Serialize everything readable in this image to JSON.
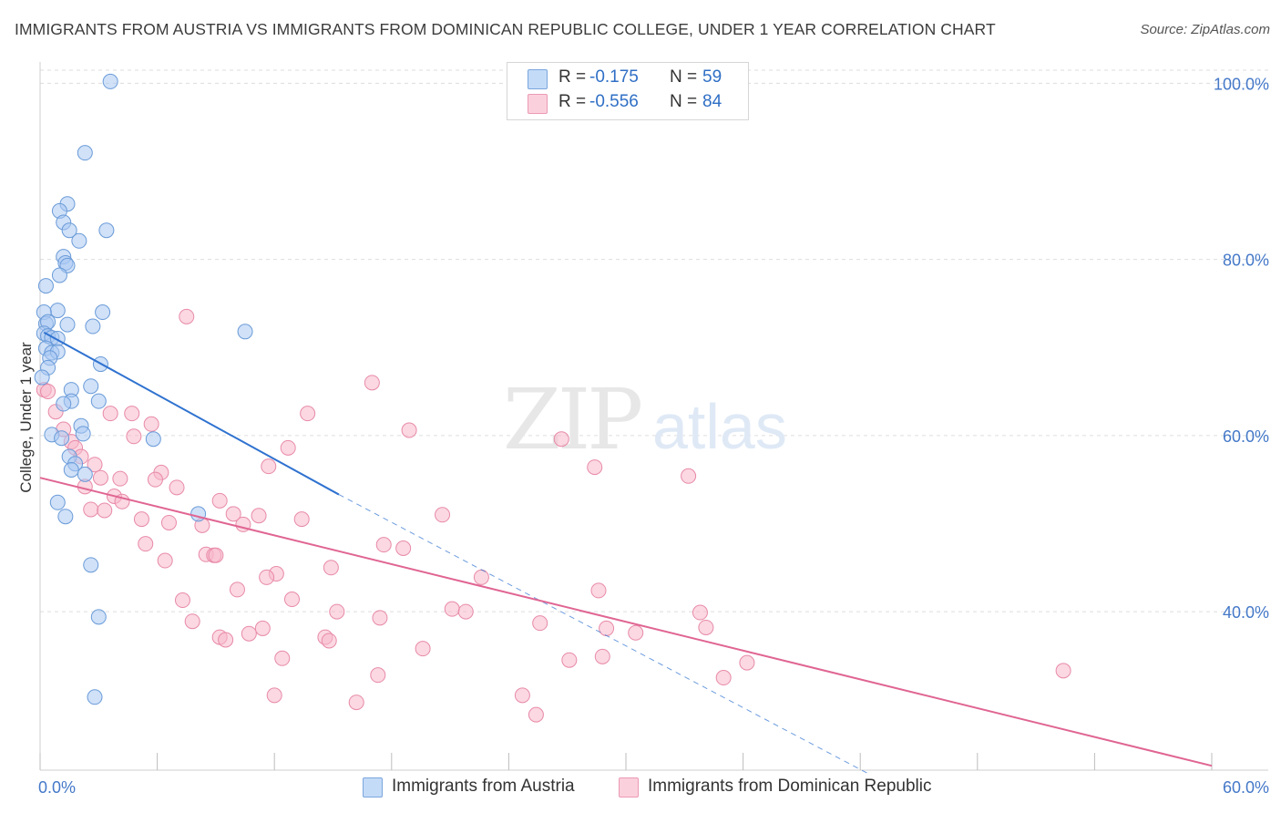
{
  "title": "IMMIGRANTS FROM AUSTRIA VS IMMIGRANTS FROM DOMINICAN REPUBLIC COLLEGE, UNDER 1 YEAR CORRELATION CHART",
  "source": "Source: ZipAtlas.com",
  "watermark": {
    "zip": "ZIP",
    "atlas": "atlas"
  },
  "legend": {
    "austria": {
      "r_label": "R =",
      "r_value": "-0.175",
      "n_label": "N =",
      "n_value": "59",
      "color": "#a9c8f2"
    },
    "dominican": {
      "r_label": "R =",
      "r_value": "-0.556",
      "n_label": "N =",
      "n_value": "84",
      "color": "#f7b8cb"
    }
  },
  "bottom_legend": {
    "austria_label": "Immigrants from Austria",
    "dominican_label": "Immigrants from Dominican Republic"
  },
  "colors": {
    "austria_fill": "#a9c8f2",
    "austria_stroke": "#6a9bd8",
    "austria_line": "#2f72d0",
    "dominican_fill": "#f7b8cb",
    "dominican_stroke": "#e88aa8",
    "dominican_line": "#e06592",
    "tick_label": "#4478c8",
    "grid": "#dddddd"
  },
  "chart_data": {
    "type": "scatter",
    "title": "IMMIGRANTS FROM AUSTRIA VS IMMIGRANTS FROM DOMINICAN REPUBLIC COLLEGE, UNDER 1 YEAR CORRELATION CHART",
    "xlabel": "",
    "ylabel": "College, Under 1 year",
    "xlim": [
      0,
      60
    ],
    "ylim": [
      22,
      102
    ],
    "x_tick_labels": [
      {
        "value": 0,
        "label": "0.0%"
      },
      {
        "value": 60,
        "label": "60.0%"
      }
    ],
    "y_tick_labels": [
      {
        "value": 40,
        "label": "40.0%"
      },
      {
        "value": 60,
        "label": "60.0%"
      },
      {
        "value": 80,
        "label": "80.0%"
      },
      {
        "value": 100,
        "label": "100.0%"
      }
    ],
    "series": [
      {
        "name": "Immigrants from Austria",
        "R": -0.175,
        "N": 59,
        "trend": {
          "x0": 0.2,
          "y0": 71.7,
          "x1": 15.3,
          "y1": 53.3,
          "dash_to_x": 42.5,
          "dash_to_y": 21.5
        },
        "points": [
          [
            3.6,
            100.2
          ],
          [
            2.3,
            92.1
          ],
          [
            1.4,
            86.3
          ],
          [
            1.0,
            85.5
          ],
          [
            1.2,
            84.2
          ],
          [
            1.5,
            83.3
          ],
          [
            3.4,
            83.3
          ],
          [
            2.0,
            82.1
          ],
          [
            1.2,
            80.3
          ],
          [
            1.3,
            79.6
          ],
          [
            1.4,
            79.3
          ],
          [
            1.0,
            78.2
          ],
          [
            0.3,
            77.0
          ],
          [
            3.2,
            74.0
          ],
          [
            0.9,
            74.2
          ],
          [
            0.2,
            74.0
          ],
          [
            0.3,
            72.7
          ],
          [
            0.4,
            72.9
          ],
          [
            1.4,
            72.6
          ],
          [
            2.7,
            72.4
          ],
          [
            10.5,
            71.8
          ],
          [
            0.2,
            71.6
          ],
          [
            0.4,
            71.3
          ],
          [
            0.6,
            71.1
          ],
          [
            0.9,
            71.0
          ],
          [
            0.3,
            69.9
          ],
          [
            0.6,
            69.4
          ],
          [
            0.9,
            69.5
          ],
          [
            0.5,
            68.8
          ],
          [
            3.1,
            68.1
          ],
          [
            0.4,
            67.7
          ],
          [
            0.1,
            66.6
          ],
          [
            2.6,
            65.6
          ],
          [
            1.6,
            65.2
          ],
          [
            1.6,
            63.9
          ],
          [
            1.2,
            63.6
          ],
          [
            3.0,
            63.9
          ],
          [
            2.1,
            61.1
          ],
          [
            2.2,
            60.2
          ],
          [
            0.6,
            60.1
          ],
          [
            1.1,
            59.7
          ],
          [
            5.8,
            59.6
          ],
          [
            1.5,
            57.6
          ],
          [
            1.8,
            56.8
          ],
          [
            1.6,
            56.1
          ],
          [
            2.3,
            55.6
          ],
          [
            0.9,
            52.4
          ],
          [
            8.1,
            51.1
          ],
          [
            1.3,
            50.8
          ],
          [
            2.6,
            45.3
          ],
          [
            3.0,
            39.4
          ],
          [
            2.8,
            30.3
          ]
        ]
      },
      {
        "name": "Immigrants from Dominican Republic",
        "R": -0.556,
        "N": 84,
        "trend": {
          "x0": 0.0,
          "y0": 55.2,
          "x1": 60.0,
          "y1": 22.5
        },
        "points": [
          [
            7.5,
            73.5
          ],
          [
            17.0,
            66.0
          ],
          [
            0.2,
            65.2
          ],
          [
            0.4,
            65.0
          ],
          [
            0.8,
            62.7
          ],
          [
            3.6,
            62.5
          ],
          [
            4.7,
            62.5
          ],
          [
            13.7,
            62.5
          ],
          [
            5.7,
            61.3
          ],
          [
            1.2,
            60.7
          ],
          [
            18.9,
            60.6
          ],
          [
            4.8,
            59.9
          ],
          [
            26.7,
            59.6
          ],
          [
            1.6,
            59.3
          ],
          [
            1.8,
            58.6
          ],
          [
            12.7,
            58.6
          ],
          [
            2.1,
            57.6
          ],
          [
            2.8,
            56.7
          ],
          [
            11.7,
            56.5
          ],
          [
            28.4,
            56.4
          ],
          [
            6.2,
            55.8
          ],
          [
            33.2,
            55.4
          ],
          [
            3.1,
            55.2
          ],
          [
            4.1,
            55.1
          ],
          [
            5.9,
            55.0
          ],
          [
            2.3,
            54.2
          ],
          [
            7.0,
            54.1
          ],
          [
            3.8,
            53.1
          ],
          [
            9.2,
            52.6
          ],
          [
            4.2,
            52.5
          ],
          [
            2.6,
            51.6
          ],
          [
            3.3,
            51.5
          ],
          [
            9.9,
            51.1
          ],
          [
            11.2,
            50.9
          ],
          [
            20.6,
            51.0
          ],
          [
            5.2,
            50.5
          ],
          [
            13.4,
            50.5
          ],
          [
            6.6,
            50.1
          ],
          [
            10.4,
            49.9
          ],
          [
            8.3,
            49.8
          ],
          [
            5.4,
            47.7
          ],
          [
            17.6,
            47.6
          ],
          [
            18.6,
            47.2
          ],
          [
            8.5,
            46.5
          ],
          [
            8.9,
            46.4
          ],
          [
            9.0,
            46.4
          ],
          [
            6.4,
            45.8
          ],
          [
            14.9,
            45.0
          ],
          [
            12.1,
            44.3
          ],
          [
            11.6,
            43.9
          ],
          [
            22.6,
            43.9
          ],
          [
            10.1,
            42.5
          ],
          [
            28.6,
            42.4
          ],
          [
            7.3,
            41.3
          ],
          [
            12.9,
            41.4
          ],
          [
            21.1,
            40.3
          ],
          [
            21.8,
            40.0
          ],
          [
            15.2,
            40.0
          ],
          [
            17.4,
            39.3
          ],
          [
            33.8,
            39.9
          ],
          [
            7.8,
            38.9
          ],
          [
            25.6,
            38.7
          ],
          [
            29.0,
            38.1
          ],
          [
            11.4,
            38.1
          ],
          [
            34.1,
            38.2
          ],
          [
            30.5,
            37.6
          ],
          [
            9.2,
            37.1
          ],
          [
            10.7,
            37.5
          ],
          [
            9.5,
            36.8
          ],
          [
            14.6,
            37.1
          ],
          [
            14.8,
            36.7
          ],
          [
            19.6,
            35.8
          ],
          [
            12.4,
            34.7
          ],
          [
            27.1,
            34.5
          ],
          [
            28.8,
            34.9
          ],
          [
            36.2,
            34.2
          ],
          [
            52.4,
            33.3
          ],
          [
            17.3,
            32.8
          ],
          [
            35.0,
            32.5
          ],
          [
            24.7,
            30.5
          ],
          [
            12.0,
            30.5
          ],
          [
            16.2,
            29.7
          ],
          [
            25.4,
            28.3
          ]
        ]
      }
    ]
  }
}
